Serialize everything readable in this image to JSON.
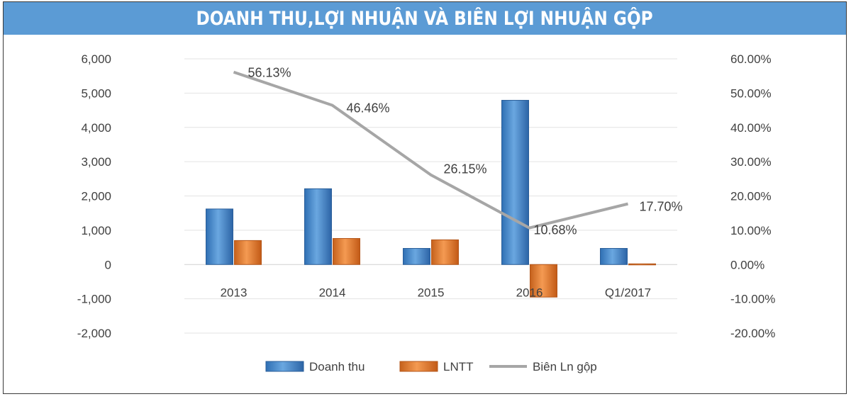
{
  "chart_data": {
    "type": "bar",
    "title": "DOANH THU,LỢI NHUẬN VÀ BIÊN LỢI NHUẬN GỘP",
    "categories": [
      "2013",
      "2014",
      "2015",
      "2016",
      "Q1/2017"
    ],
    "series": [
      {
        "name": "Doanh thu",
        "type": "bar",
        "axis": "left",
        "color": "#4f8fce",
        "values": [
          1620,
          2210,
          470,
          4790,
          470
        ]
      },
      {
        "name": "LNTT",
        "type": "bar",
        "axis": "left",
        "color": "#e97b2d",
        "values": [
          700,
          760,
          720,
          -950,
          20
        ]
      },
      {
        "name": "Biên Ln gộp",
        "type": "line",
        "axis": "right",
        "color": "#a6a6a6",
        "values": [
          56.13,
          46.46,
          26.15,
          10.68,
          17.7
        ],
        "labels": [
          "56.13%",
          "46.46%",
          "26.15%",
          "10.68%",
          "17.70%"
        ]
      }
    ],
    "left_axis": {
      "min": -2000,
      "max": 6000,
      "step": 1000,
      "ticks": [
        "6,000",
        "5,000",
        "4,000",
        "3,000",
        "2,000",
        "1,000",
        "0",
        "-1,000",
        "-2,000"
      ]
    },
    "right_axis": {
      "min": -20,
      "max": 60,
      "step": 10,
      "ticks": [
        "60.00%",
        "50.00%",
        "40.00%",
        "30.00%",
        "20.00%",
        "10.00%",
        "0.00%",
        "-10.00%",
        "-20.00%"
      ]
    },
    "grid": true,
    "legend_position": "bottom-center"
  }
}
